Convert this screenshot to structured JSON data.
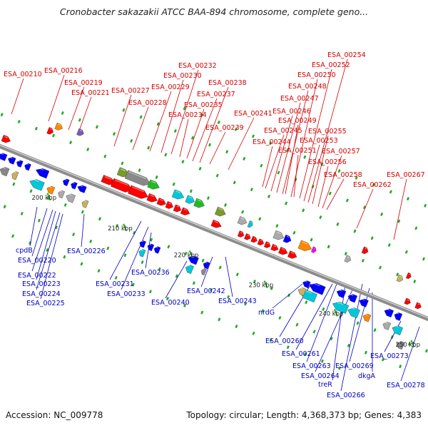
{
  "header": {
    "title": "Cronobacter sakazakii ATCC BAA-894 chromosome, complete geno..."
  },
  "footer": {
    "accession": "Accession: NC_009778",
    "topology": "Topology: circular; Length: 4,368,373 bp; Genes: 4,383"
  },
  "colors": {
    "backbone": "#8c8c8c",
    "forward_label": "#d40000",
    "reverse_label": "#0000c0",
    "forward_gene": "#ff0000",
    "reverse_gene": "#0000ff",
    "gene_palette": [
      "#ff0000",
      "#0000ff",
      "#00c8d8",
      "#7a9a2a",
      "#22bb22",
      "#888888",
      "#aaaaaa",
      "#ff8800",
      "#c8b060",
      "#7a5ab4",
      "#ff00ff"
    ]
  },
  "ticks": [
    "200 kbp",
    "210 kbp",
    "220 kbp",
    "230 kbp",
    "240 kbp",
    "250 kbp"
  ],
  "forward_labels": [
    "ESA_00210",
    "ESA_00216",
    "ESA_00219",
    "ESA_00221",
    "ESA_00227",
    "ESA_00228",
    "ESA_00229",
    "ESA_00230",
    "ESA_00232",
    "ESA_00234",
    "ESA_00235",
    "ESA_00237",
    "ESA_00238",
    "ESA_00239",
    "ESA_00241",
    "ESA_00244",
    "ESA_00245",
    "ESA_00246",
    "ESA_00247",
    "ESA_00248",
    "ESA_00249",
    "ESA_00250",
    "ESA_00251",
    "ESA_00252",
    "ESA_00253",
    "ESA_00254",
    "ESA_00255",
    "ESA_00256",
    "ESA_00257",
    "ESA_00258",
    "ESA_00262",
    "ESA_00267"
  ],
  "reverse_labels": [
    "cpdB",
    "ESA_00220",
    "ESA_00222",
    "ESA_00223",
    "ESA_00224",
    "ESA_00225",
    "ESA_00226",
    "ESA_00231",
    "ESA_00233",
    "ESA_00236",
    "ESA_00240",
    "ESA_00242",
    "ESA_00243",
    "nrdG",
    "ESA_00260",
    "ESA_00261",
    "ESA_00263",
    "ESA_00264",
    "treR",
    "ESA_00266",
    "ESA_00269",
    "dkgA",
    "ESA_00273",
    "ESA_00278"
  ]
}
